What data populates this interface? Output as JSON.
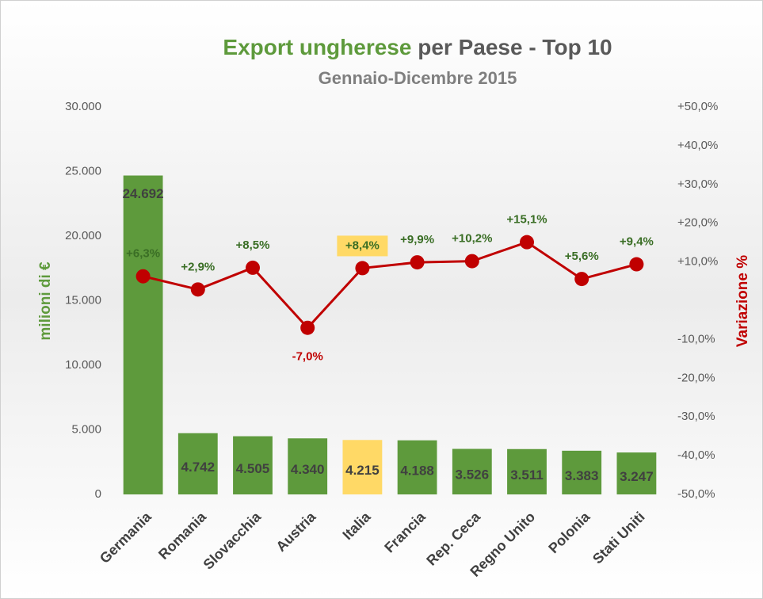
{
  "chart_data": {
    "type": "bar_line",
    "title_highlight": "Export ungherese",
    "title_rest": "per Paese - Top 10",
    "subtitle": "Gennaio-Dicembre 2015",
    "ylabel": "milioni di €",
    "y2label": "Variazione %",
    "categories": [
      "Germania",
      "Romania",
      "Slovacchia",
      "Austria",
      "Italia",
      "Francia",
      "Rep. Ceca",
      "Regno Unito",
      "Polonia",
      "Stati Uniti"
    ],
    "series": [
      {
        "name": "Export",
        "type": "bar",
        "axis": "y",
        "colors": [
          "#5e9a3c",
          "#5e9a3c",
          "#5e9a3c",
          "#5e9a3c",
          "#ffd966",
          "#5e9a3c",
          "#5e9a3c",
          "#5e9a3c",
          "#5e9a3c",
          "#5e9a3c"
        ],
        "values": [
          24692,
          4742,
          4505,
          4340,
          4215,
          4188,
          3526,
          3511,
          3383,
          3247
        ],
        "value_labels": [
          "24.692",
          "4.742",
          "4.505",
          "4.340",
          "4.215",
          "4.188",
          "3.526",
          "3.511",
          "3.383",
          "3.247"
        ]
      },
      {
        "name": "Variazione",
        "type": "line",
        "axis": "y2",
        "color": "#c00000",
        "values": [
          6.3,
          2.9,
          8.5,
          -7.0,
          8.4,
          9.9,
          10.2,
          15.1,
          5.6,
          9.4
        ],
        "value_labels": [
          "+6,3%",
          "+2,9%",
          "+8,5%",
          "-7,0%",
          "+8,4%",
          "+9,9%",
          "+10,2%",
          "+15,1%",
          "+5,6%",
          "+9,4%"
        ],
        "label_highlight": {
          "index": 4,
          "color": "#ffd966"
        }
      }
    ],
    "ylim": [
      0,
      30000
    ],
    "yticks": [
      0,
      {
        "value": 5000,
        "label": "5.000"
      },
      {
        "value": 10000,
        "label": "10.000"
      },
      {
        "value": 15000,
        "label": "15.000"
      },
      {
        "value": 20000,
        "label": "20.000"
      },
      {
        "value": 25000,
        "label": "25.000"
      },
      {
        "value": 30000,
        "label": "30.000"
      }
    ],
    "y2lim": [
      -50,
      50
    ],
    "y2ticks": [
      {
        "value": -50,
        "label": "-50,0%"
      },
      {
        "value": -40,
        "label": "-40,0%"
      },
      {
        "value": -30,
        "label": "-30,0%"
      },
      {
        "value": -20,
        "label": "-20,0%"
      },
      {
        "value": -10,
        "label": "-10,0%"
      },
      {
        "value": 10,
        "label": "+10,0%"
      },
      {
        "value": 20,
        "label": "+20,0%"
      },
      {
        "value": 30,
        "label": "+30,0%"
      },
      {
        "value": 40,
        "label": "+40,0%"
      },
      {
        "value": 50,
        "label": "+50,0%"
      }
    ],
    "grid": false
  }
}
